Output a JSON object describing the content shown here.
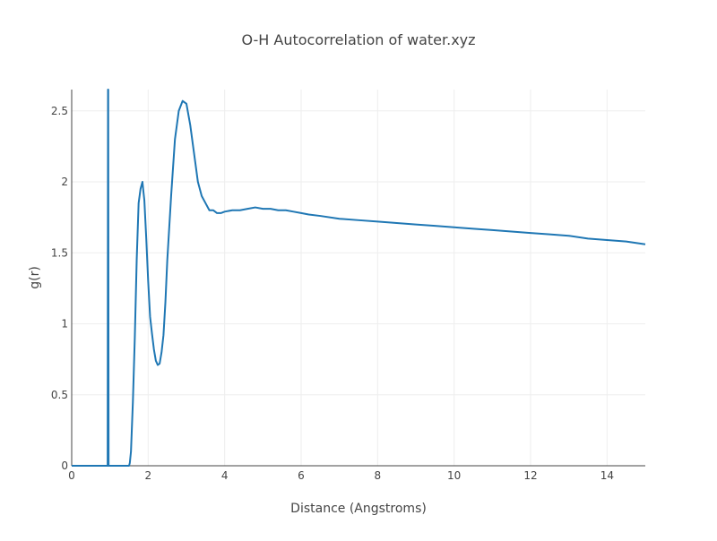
{
  "chart_data": {
    "type": "line",
    "title": "O-H Autocorrelation of water.xyz",
    "xlabel": "Distance (Angstroms)",
    "ylabel": "g(r)",
    "xlim": [
      0,
      15
    ],
    "ylim": [
      0,
      2.65
    ],
    "x_ticks": [
      0,
      2,
      4,
      6,
      8,
      10,
      12,
      14
    ],
    "x_tick_labels": [
      "0",
      "2",
      "4",
      "6",
      "8",
      "10",
      "12",
      "14"
    ],
    "y_ticks": [
      0,
      0.5,
      1,
      1.5,
      2,
      2.5
    ],
    "y_tick_labels": [
      "0",
      "0.5",
      "1",
      "1.5",
      "2",
      "2.5"
    ],
    "grid": true,
    "legend": "none",
    "series": [
      {
        "color": "#1f77b4",
        "x": [
          0,
          0.94,
          0.95,
          0.955,
          0.965,
          0.975,
          1.5,
          1.52,
          1.55,
          1.6,
          1.65,
          1.7,
          1.75,
          1.8,
          1.85,
          1.88,
          1.9,
          1.95,
          2.0,
          2.05,
          2.1,
          2.15,
          2.2,
          2.25,
          2.3,
          2.35,
          2.4,
          2.45,
          2.5,
          2.6,
          2.7,
          2.8,
          2.9,
          3.0,
          3.1,
          3.2,
          3.3,
          3.4,
          3.5,
          3.6,
          3.7,
          3.8,
          3.9,
          4.0,
          4.2,
          4.4,
          4.6,
          4.8,
          5.0,
          5.2,
          5.4,
          5.6,
          5.8,
          6.0,
          6.2,
          6.5,
          7.0,
          7.5,
          8.0,
          8.5,
          9.0,
          9.5,
          10.0,
          10.5,
          11.0,
          11.5,
          12.0,
          12.5,
          13.0,
          13.5,
          14.0,
          14.5,
          15.0
        ],
        "y": [
          0,
          0,
          2.65,
          2.65,
          0,
          0,
          0,
          0.02,
          0.1,
          0.45,
          0.9,
          1.45,
          1.85,
          1.95,
          2.0,
          1.92,
          1.87,
          1.6,
          1.3,
          1.05,
          0.93,
          0.82,
          0.74,
          0.71,
          0.72,
          0.8,
          0.92,
          1.15,
          1.45,
          1.9,
          2.3,
          2.5,
          2.57,
          2.55,
          2.4,
          2.2,
          2.0,
          1.9,
          1.85,
          1.8,
          1.8,
          1.78,
          1.78,
          1.79,
          1.8,
          1.8,
          1.81,
          1.82,
          1.81,
          1.81,
          1.8,
          1.8,
          1.79,
          1.78,
          1.77,
          1.76,
          1.74,
          1.73,
          1.72,
          1.71,
          1.7,
          1.69,
          1.68,
          1.67,
          1.66,
          1.65,
          1.64,
          1.63,
          1.62,
          1.6,
          1.59,
          1.58,
          1.56
        ]
      }
    ]
  }
}
